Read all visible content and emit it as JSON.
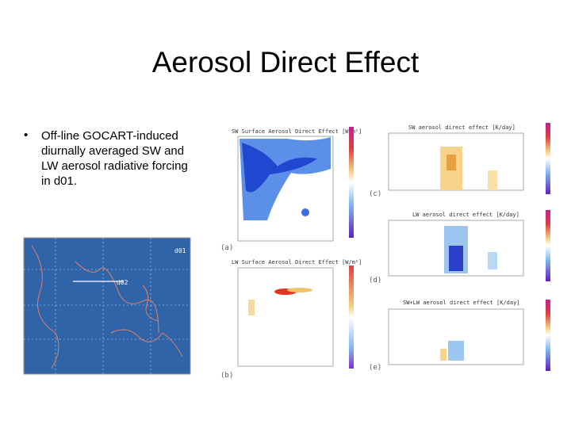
{
  "title": "Aerosol Direct Effect",
  "bullets": [
    "Off-line GOCART-induced diurnally averaged SW and LW aerosol radiative forcing in d01."
  ],
  "figure": {
    "map_labels": [
      "d01",
      "d02"
    ],
    "panels": [
      {
        "label": "(a)",
        "title": "SW Surface Aerosol Direct Effect [W/m²]"
      },
      {
        "label": "(b)",
        "title": "LW Surface Aerosol Direct Effect [W/m²]"
      },
      {
        "label": "(c)",
        "title": "SW aerosol direct effect [K/day]"
      },
      {
        "label": "(d)",
        "title": "LW aerosol direct effect [K/day]"
      },
      {
        "label": "(e)",
        "title": "SW+LW aerosol direct effect [K/day]"
      }
    ]
  }
}
